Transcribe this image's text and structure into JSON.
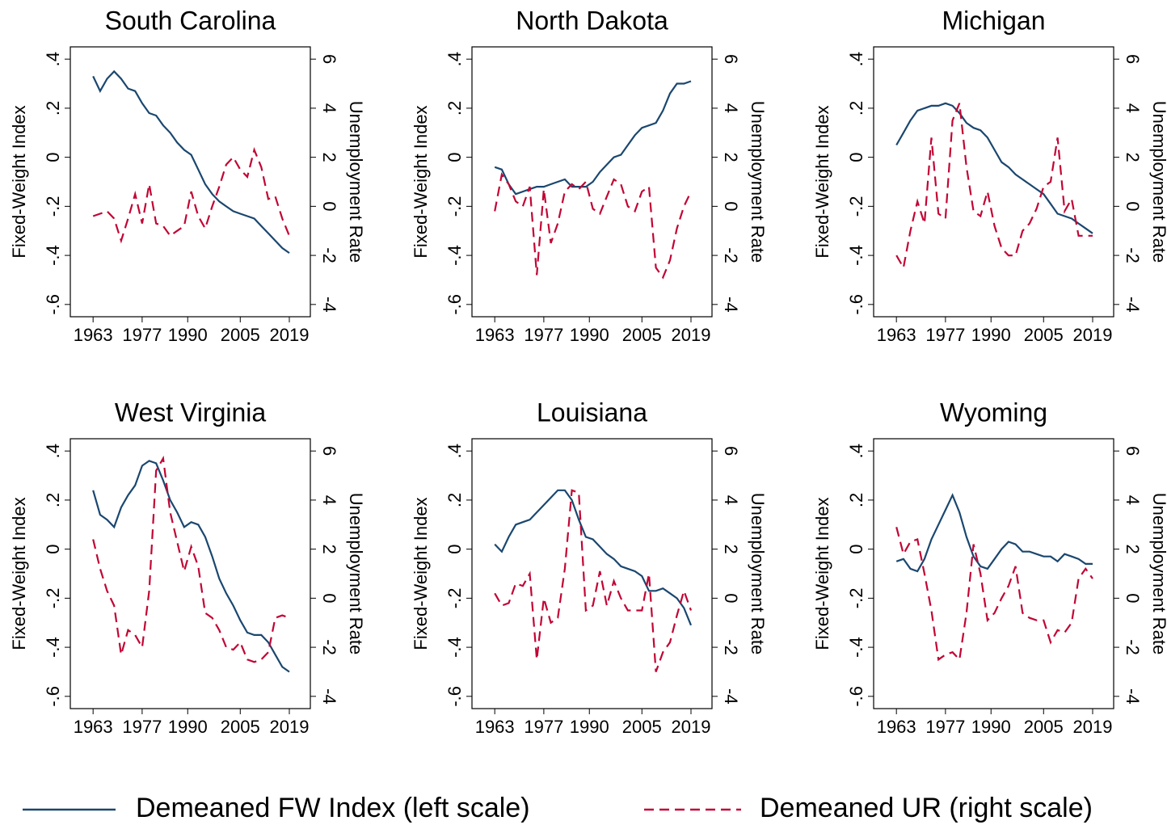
{
  "chart_data": [
    {
      "type": "line",
      "title": "South Carolina",
      "ylabel": "Fixed-Weight Index",
      "y2label": "Unemployment Rate",
      "x": [
        1963,
        1965,
        1967,
        1969,
        1971,
        1973,
        1975,
        1977,
        1979,
        1981,
        1983,
        1985,
        1987,
        1989,
        1991,
        1993,
        1995,
        1997,
        1999,
        2001,
        2003,
        2005,
        2007,
        2009,
        2011,
        2013,
        2015,
        2017,
        2019
      ],
      "xlim": [
        1956.5,
        2025
      ],
      "xticks": [
        1963,
        1977,
        1990,
        2005,
        2019
      ],
      "ylim": [
        -0.65,
        0.45
      ],
      "yticks": [
        {
          "value": -0.6,
          "label": "-.6"
        },
        {
          "value": -0.4,
          "label": "-.4"
        },
        {
          "value": -0.2,
          "label": "-.2"
        },
        0,
        {
          "value": 0.2,
          "label": ".2"
        },
        {
          "value": 0.4,
          "label": ".4"
        }
      ],
      "y2lim": [
        -4.5,
        6.5
      ],
      "y2ticks": [
        -4,
        -2,
        0,
        2,
        4,
        6
      ],
      "series": [
        {
          "name": "Demeaned FW Index (left scale)",
          "color": "#1a476f",
          "style": "solid",
          "values": [
            0.33,
            0.27,
            0.32,
            0.35,
            0.32,
            0.28,
            0.27,
            0.22,
            0.18,
            0.17,
            0.13,
            0.1,
            0.06,
            0.03,
            0.01,
            -0.05,
            -0.11,
            -0.15,
            -0.18,
            -0.2,
            -0.22,
            -0.23,
            -0.24,
            -0.25,
            -0.28,
            -0.31,
            -0.34,
            -0.37,
            -0.39
          ]
        },
        {
          "name": "Demeaned UR (right scale)",
          "color": "#c10534",
          "style": "dashed",
          "axis": "y2",
          "values": [
            -0.4,
            -0.3,
            -0.2,
            -0.5,
            -1.4,
            -0.5,
            0.5,
            -0.7,
            0.9,
            -0.7,
            -0.8,
            -1.2,
            -1.0,
            -0.8,
            0.6,
            -0.4,
            -0.9,
            0.0,
            0.8,
            1.7,
            2.0,
            1.5,
            1.2,
            2.3,
            1.6,
            0.3,
            0.4,
            -0.5,
            -1.2
          ]
        }
      ]
    },
    {
      "type": "line",
      "title": "North Dakota",
      "ylabel": "Fixed-Weight Index",
      "y2label": "Unemployment Rate",
      "x": [
        1963,
        1965,
        1967,
        1969,
        1971,
        1973,
        1975,
        1977,
        1979,
        1981,
        1983,
        1985,
        1987,
        1989,
        1991,
        1993,
        1995,
        1997,
        1999,
        2001,
        2003,
        2005,
        2007,
        2009,
        2011,
        2013,
        2015,
        2017,
        2019
      ],
      "xlim": [
        1956.5,
        2025
      ],
      "xticks": [
        1963,
        1977,
        1990,
        2005,
        2019
      ],
      "ylim": [
        -0.65,
        0.45
      ],
      "yticks": [
        {
          "value": -0.6,
          "label": "-.6"
        },
        {
          "value": -0.4,
          "label": "-.4"
        },
        {
          "value": -0.2,
          "label": "-.2"
        },
        0,
        {
          "value": 0.2,
          "label": ".2"
        },
        {
          "value": 0.4,
          "label": ".4"
        }
      ],
      "y2lim": [
        -4.5,
        6.5
      ],
      "y2ticks": [
        -4,
        -2,
        0,
        2,
        4,
        6
      ],
      "series": [
        {
          "color": "#1a476f",
          "style": "solid",
          "values": [
            -0.04,
            -0.05,
            -0.11,
            -0.15,
            -0.14,
            -0.13,
            -0.12,
            -0.12,
            -0.11,
            -0.1,
            -0.09,
            -0.12,
            -0.12,
            -0.12,
            -0.1,
            -0.06,
            -0.03,
            0.0,
            0.01,
            0.05,
            0.09,
            0.12,
            0.13,
            0.14,
            0.19,
            0.26,
            0.3,
            0.3,
            0.31
          ]
        },
        {
          "color": "#c10534",
          "style": "dashed",
          "axis": "y2",
          "values": [
            -0.2,
            1.3,
            0.9,
            0.2,
            0.0,
            0.8,
            -2.8,
            0.7,
            -1.5,
            -0.7,
            0.6,
            0.9,
            0.7,
            1.0,
            -0.1,
            -0.3,
            0.4,
            1.1,
            0.9,
            0.0,
            -0.2,
            0.6,
            0.8,
            -2.5,
            -2.9,
            -2.2,
            -0.9,
            0.0,
            0.6
          ]
        }
      ]
    },
    {
      "type": "line",
      "title": "Michigan",
      "ylabel": "Fixed-Weight Index",
      "y2label": "Unemployment Rate",
      "x": [
        1963,
        1965,
        1967,
        1969,
        1971,
        1973,
        1975,
        1977,
        1979,
        1981,
        1983,
        1985,
        1987,
        1989,
        1991,
        1993,
        1995,
        1997,
        1999,
        2001,
        2003,
        2005,
        2007,
        2009,
        2011,
        2013,
        2015,
        2017,
        2019
      ],
      "xlim": [
        1956.5,
        2025
      ],
      "xticks": [
        1963,
        1977,
        1990,
        2005,
        2019
      ],
      "ylim": [
        -0.65,
        0.45
      ],
      "yticks": [
        {
          "value": -0.6,
          "label": "-.6"
        },
        {
          "value": -0.4,
          "label": "-.4"
        },
        {
          "value": -0.2,
          "label": "-.2"
        },
        0,
        {
          "value": 0.2,
          "label": ".2"
        },
        {
          "value": 0.4,
          "label": ".4"
        }
      ],
      "y2lim": [
        -4.5,
        6.5
      ],
      "y2ticks": [
        -4,
        -2,
        0,
        2,
        4,
        6
      ],
      "series": [
        {
          "color": "#1a476f",
          "style": "solid",
          "values": [
            0.05,
            0.1,
            0.15,
            0.19,
            0.2,
            0.21,
            0.21,
            0.22,
            0.21,
            0.18,
            0.14,
            0.12,
            0.11,
            0.08,
            0.03,
            -0.02,
            -0.04,
            -0.07,
            -0.09,
            -0.11,
            -0.13,
            -0.15,
            -0.19,
            -0.23,
            -0.24,
            -0.25,
            -0.27,
            -0.29,
            -0.31
          ]
        },
        {
          "color": "#c10534",
          "style": "dashed",
          "axis": "y2",
          "values": [
            -2.0,
            -2.5,
            -1.0,
            0.2,
            -0.7,
            2.8,
            -0.3,
            -0.5,
            3.5,
            4.2,
            1.6,
            -0.2,
            -0.4,
            0.6,
            -0.8,
            -1.7,
            -2.0,
            -2.0,
            -1.0,
            -0.7,
            -0.1,
            0.8,
            1.0,
            2.8,
            -0.2,
            0.3,
            -1.2,
            -1.2,
            -1.2
          ]
        }
      ]
    },
    {
      "type": "line",
      "title": "West Virginia",
      "ylabel": "Fixed-Weight Index",
      "y2label": "Unemployment Rate",
      "x": [
        1963,
        1965,
        1967,
        1969,
        1971,
        1973,
        1975,
        1977,
        1979,
        1981,
        1983,
        1985,
        1987,
        1989,
        1991,
        1993,
        1995,
        1997,
        1999,
        2001,
        2003,
        2005,
        2007,
        2009,
        2011,
        2013,
        2015,
        2017,
        2019
      ],
      "xlim": [
        1956.5,
        2025
      ],
      "xticks": [
        1963,
        1977,
        1990,
        2005,
        2019
      ],
      "ylim": [
        -0.65,
        0.45
      ],
      "yticks": [
        {
          "value": -0.6,
          "label": "-.6"
        },
        {
          "value": -0.4,
          "label": "-.4"
        },
        {
          "value": -0.2,
          "label": "-.2"
        },
        0,
        {
          "value": 0.2,
          "label": ".2"
        },
        {
          "value": 0.4,
          "label": ".4"
        }
      ],
      "y2lim": [
        -4.5,
        6.5
      ],
      "y2ticks": [
        -4,
        -2,
        0,
        2,
        4,
        6
      ],
      "series": [
        {
          "color": "#1a476f",
          "style": "solid",
          "values": [
            0.24,
            0.14,
            0.12,
            0.09,
            0.17,
            0.22,
            0.26,
            0.34,
            0.36,
            0.35,
            0.28,
            0.2,
            0.15,
            0.09,
            0.11,
            0.1,
            0.05,
            -0.03,
            -0.12,
            -0.18,
            -0.23,
            -0.29,
            -0.34,
            -0.35,
            -0.35,
            -0.38,
            -0.43,
            -0.48,
            -0.5
          ]
        },
        {
          "color": "#c10534",
          "style": "dashed",
          "axis": "y2",
          "values": [
            2.4,
            1.2,
            0.3,
            -0.3,
            -2.3,
            -1.3,
            -1.5,
            -2.0,
            0.3,
            5.2,
            5.7,
            3.5,
            2.3,
            1.1,
            2.1,
            1.3,
            -0.6,
            -0.8,
            -1.3,
            -2.0,
            -2.1,
            -1.8,
            -2.5,
            -2.6,
            -2.5,
            -2.2,
            -0.8,
            -0.7,
            -0.8
          ]
        }
      ]
    },
    {
      "type": "line",
      "title": "Louisiana",
      "ylabel": "Fixed-Weight Index",
      "y2label": "Unemployment Rate",
      "x": [
        1963,
        1965,
        1967,
        1969,
        1971,
        1973,
        1975,
        1977,
        1979,
        1981,
        1983,
        1985,
        1987,
        1989,
        1991,
        1993,
        1995,
        1997,
        1999,
        2001,
        2003,
        2005,
        2007,
        2009,
        2011,
        2013,
        2015,
        2017,
        2019
      ],
      "xlim": [
        1956.5,
        2025
      ],
      "xticks": [
        1963,
        1977,
        1990,
        2005,
        2019
      ],
      "ylim": [
        -0.65,
        0.45
      ],
      "yticks": [
        {
          "value": -0.6,
          "label": "-.6"
        },
        {
          "value": -0.4,
          "label": "-.4"
        },
        {
          "value": -0.2,
          "label": "-.2"
        },
        0,
        {
          "value": 0.2,
          "label": ".2"
        },
        {
          "value": 0.4,
          "label": ".4"
        }
      ],
      "y2lim": [
        -4.5,
        6.5
      ],
      "y2ticks": [
        -4,
        -2,
        0,
        2,
        4,
        6
      ],
      "series": [
        {
          "color": "#1a476f",
          "style": "solid",
          "values": [
            0.02,
            -0.01,
            0.05,
            0.1,
            0.11,
            0.12,
            0.15,
            0.18,
            0.21,
            0.24,
            0.24,
            0.2,
            0.12,
            0.05,
            0.04,
            0.01,
            -0.02,
            -0.04,
            -0.07,
            -0.08,
            -0.09,
            -0.11,
            -0.17,
            -0.17,
            -0.16,
            -0.18,
            -0.2,
            -0.24,
            -0.31
          ]
        },
        {
          "color": "#c10534",
          "style": "dashed",
          "axis": "y2",
          "values": [
            0.2,
            -0.3,
            -0.2,
            0.6,
            0.5,
            1.0,
            -2.5,
            0.0,
            -1.0,
            -0.8,
            1.2,
            4.4,
            4.3,
            -0.5,
            -0.3,
            1.1,
            -0.3,
            0.7,
            0.0,
            -0.5,
            -0.5,
            -0.5,
            1.0,
            -3.0,
            -2.2,
            -1.8,
            -0.7,
            0.3,
            -0.5
          ]
        }
      ]
    },
    {
      "type": "line",
      "title": "Wyoming",
      "ylabel": "Fixed-Weight Index",
      "y2label": "Unemployment Rate",
      "x": [
        1963,
        1965,
        1967,
        1969,
        1971,
        1973,
        1975,
        1977,
        1979,
        1981,
        1983,
        1985,
        1987,
        1989,
        1991,
        1993,
        1995,
        1997,
        1999,
        2001,
        2003,
        2005,
        2007,
        2009,
        2011,
        2013,
        2015,
        2017,
        2019
      ],
      "xlim": [
        1956.5,
        2025
      ],
      "xticks": [
        1963,
        1977,
        1990,
        2005,
        2019
      ],
      "ylim": [
        -0.65,
        0.45
      ],
      "yticks": [
        {
          "value": -0.6,
          "label": "-.6"
        },
        {
          "value": -0.4,
          "label": "-.4"
        },
        {
          "value": -0.2,
          "label": "-.2"
        },
        0,
        {
          "value": 0.2,
          "label": ".2"
        },
        {
          "value": 0.4,
          "label": ".4"
        }
      ],
      "y2lim": [
        -4.5,
        6.5
      ],
      "y2ticks": [
        -4,
        -2,
        0,
        2,
        4,
        6
      ],
      "series": [
        {
          "color": "#1a476f",
          "style": "solid",
          "values": [
            -0.05,
            -0.04,
            -0.08,
            -0.09,
            -0.04,
            0.04,
            0.1,
            0.16,
            0.22,
            0.15,
            0.05,
            -0.03,
            -0.07,
            -0.08,
            -0.04,
            0.0,
            0.03,
            0.02,
            -0.01,
            -0.01,
            -0.02,
            -0.03,
            -0.03,
            -0.05,
            -0.02,
            -0.03,
            -0.04,
            -0.06,
            -0.06
          ]
        },
        {
          "color": "#c10534",
          "style": "dashed",
          "axis": "y2",
          "values": [
            2.9,
            1.8,
            2.3,
            2.4,
            1.0,
            -0.5,
            -2.5,
            -2.3,
            -2.2,
            -2.5,
            -0.6,
            2.2,
            1.0,
            -0.9,
            -0.6,
            0.0,
            0.5,
            1.3,
            -0.6,
            -0.8,
            -0.9,
            -0.9,
            -1.8,
            -1.3,
            -1.4,
            -1.0,
            0.8,
            1.2,
            0.8
          ]
        }
      ]
    }
  ]
}
